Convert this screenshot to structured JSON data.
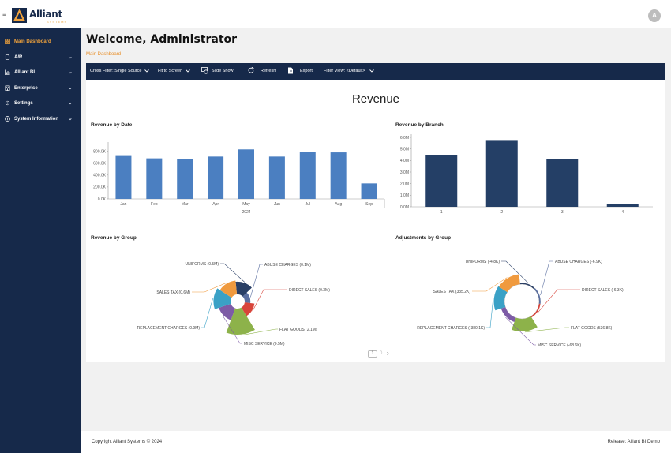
{
  "header": {
    "logo_name": "Alliant",
    "logo_sub": "SYSTEMS",
    "avatar_initial": "A"
  },
  "sidebar": {
    "items": [
      {
        "label": "Main Dashboard",
        "icon": "dashboard-icon",
        "active": true
      },
      {
        "label": "A/R",
        "icon": "document-icon"
      },
      {
        "label": "Alliant BI",
        "icon": "chart-icon"
      },
      {
        "label": "Enterprise",
        "icon": "building-icon"
      },
      {
        "label": "Settings",
        "icon": "gear-icon"
      },
      {
        "label": "System Information",
        "icon": "info-icon"
      }
    ]
  },
  "page": {
    "title": "Welcome, Administrator",
    "breadcrumb": "Main Dashboard"
  },
  "toolbar": {
    "cross_filter": "Cross Filter: Single Source",
    "fit": "Fit to Screen",
    "slideshow": "Slide Show",
    "refresh": "Refresh",
    "export": "Export",
    "filter_view": "Filter View: <Default>"
  },
  "dashboard": {
    "title": "Revenue"
  },
  "chart_data": [
    {
      "type": "bar",
      "title": "Revenue by Date",
      "categories": [
        "Jan",
        "Feb",
        "Mar",
        "Apr",
        "May",
        "Jun",
        "Jul",
        "Aug",
        "Sep"
      ],
      "values": [
        720000,
        680000,
        670000,
        710000,
        830000,
        710000,
        790000,
        780000,
        260000
      ],
      "xlabel": "2024",
      "yticks": [
        "0.0K",
        "200.0K",
        "400.0K",
        "600.0K",
        "800.0K"
      ],
      "ylim": [
        0,
        900000
      ],
      "color": "#4b7fc1"
    },
    {
      "type": "bar",
      "title": "Revenue by Branch",
      "categories": [
        "1",
        "2",
        "3",
        "4"
      ],
      "values": [
        4500000,
        5700000,
        4100000,
        250000
      ],
      "yticks": [
        "0.0M",
        "1.0M",
        "2.0M",
        "3.0M",
        "4.0M",
        "5.0M",
        "6.0M"
      ],
      "ylim": [
        0,
        6000000
      ],
      "color": "#243f66"
    },
    {
      "type": "pie",
      "title": "Revenue by Group",
      "slices": [
        {
          "label": "UNIFORMS (0.5M)",
          "value": 0.5,
          "color": "#2a3f66"
        },
        {
          "label": "ABUSE CHARGES (0.1M)",
          "value": 0.1,
          "color": "#5b6fa0"
        },
        {
          "label": "DIRECT SALES (0.3M)",
          "value": 0.3,
          "color": "#d8443a"
        },
        {
          "label": "FLAT GOODS (2.1M)",
          "value": 2.1,
          "color": "#8db24a"
        },
        {
          "label": "MISC SERVICE (0.5M)",
          "value": 0.5,
          "color": "#7d5ba6"
        },
        {
          "label": "REPLACEMENT CHARGES (0.9M)",
          "value": 0.9,
          "color": "#3aa1c6"
        },
        {
          "label": "SALES TAX (0.6M)",
          "value": 0.6,
          "color": "#f09a3e"
        }
      ]
    },
    {
      "type": "pie",
      "title": "Adjustments by Group",
      "slices": [
        {
          "label": "UNIFORMS (-4.8K)",
          "value": -4.8,
          "color": "#2a3f66"
        },
        {
          "label": "ABUSE CHARGES (-6.9K)",
          "value": -6.9,
          "color": "#5b6fa0"
        },
        {
          "label": "DIRECT SALES (-6.3K)",
          "value": -6.3,
          "color": "#d8443a"
        },
        {
          "label": "FLAT GOODS (536.8K)",
          "value": 536.8,
          "color": "#8db24a"
        },
        {
          "label": "MISC SERVICE (-68.6K)",
          "value": -68.6,
          "color": "#7d5ba6"
        },
        {
          "label": "REPLACEMENT CHARGES (-380.1K)",
          "value": -380.1,
          "color": "#3aa1c6"
        },
        {
          "label": "SALES TAX (335.2K)",
          "value": 335.2,
          "color": "#f09a3e"
        }
      ]
    }
  ],
  "pager": {
    "current": "1",
    "next_page": "0"
  },
  "footer": {
    "copyright": "Copyright Alliant Systems © 2024",
    "release": "Release: Alliant BI Demo"
  }
}
